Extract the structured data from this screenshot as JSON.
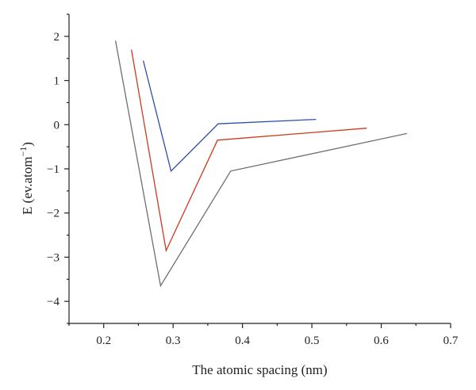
{
  "chart_data": {
    "type": "line",
    "title": "",
    "xlabel": "The atomic spacing (nm)",
    "ylabel_main": "E (ev.atom",
    "ylabel_sup": "−1",
    "ylabel_close": ")",
    "xlim": [
      0.15,
      0.7
    ],
    "ylim": [
      -4.5,
      2.5
    ],
    "xticks": [
      0.2,
      0.3,
      0.4,
      0.5,
      0.6,
      0.7
    ],
    "xtick_labels": [
      "0.2",
      "0.3",
      "0.4",
      "0.5",
      "0.6",
      "0.7"
    ],
    "yticks": [
      2,
      1,
      0,
      -1,
      -2,
      -3,
      -4
    ],
    "ytick_labels": [
      "2",
      "1",
      "0",
      "−1",
      "−2",
      "−3",
      "−4"
    ],
    "grid": false,
    "legend": "none",
    "series": [
      {
        "color": "#6e6e6e",
        "x": [
          0.217,
          0.282,
          0.383,
          0.637
        ],
        "y": [
          1.9,
          -3.65,
          -1.05,
          -0.2
        ]
      },
      {
        "color": "#cc3a1e",
        "x": [
          0.24,
          0.29,
          0.364,
          0.579
        ],
        "y": [
          1.7,
          -2.85,
          -0.35,
          -0.08
        ]
      },
      {
        "color": "#2e4fa8",
        "x": [
          0.257,
          0.297,
          0.365,
          0.506
        ],
        "y": [
          1.45,
          -1.05,
          0.02,
          0.12
        ]
      }
    ]
  }
}
